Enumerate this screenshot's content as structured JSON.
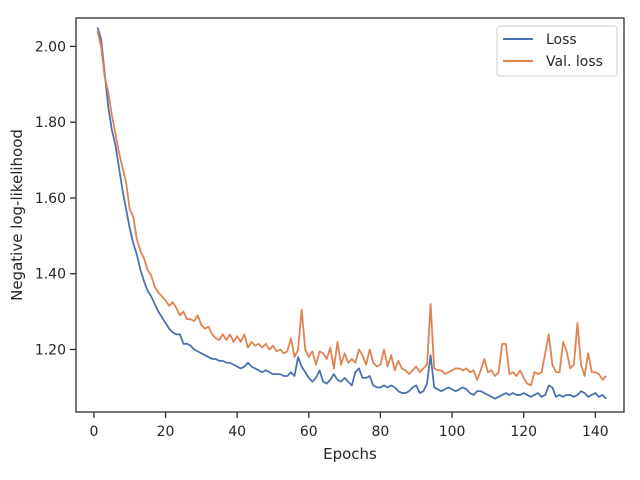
{
  "chart_data": {
    "type": "line",
    "title": "",
    "xlabel": "Epochs",
    "ylabel": "Negative log-likelihood",
    "xlim": [
      -5,
      148
    ],
    "ylim": [
      1.035,
      2.075
    ],
    "xticks": [
      0,
      20,
      40,
      60,
      80,
      100,
      120,
      140
    ],
    "xtick_labels": [
      "0",
      "20",
      "40",
      "60",
      "80",
      "100",
      "120",
      "140"
    ],
    "yticks": [
      1.2,
      1.4,
      1.6,
      1.8,
      2.0
    ],
    "ytick_labels": [
      "1.20",
      "1.40",
      "1.60",
      "1.80",
      "2.00"
    ],
    "grid": false,
    "legend_position": "top-right",
    "series": [
      {
        "name": "Loss",
        "color": "#4c72b0",
        "x": [
          1,
          2,
          3,
          4,
          5,
          6,
          7,
          8,
          9,
          10,
          11,
          12,
          13,
          14,
          15,
          16,
          17,
          18,
          19,
          20,
          21,
          22,
          23,
          24,
          25,
          26,
          27,
          28,
          29,
          30,
          31,
          32,
          33,
          34,
          35,
          36,
          37,
          38,
          39,
          40,
          41,
          42,
          43,
          44,
          45,
          46,
          47,
          48,
          49,
          50,
          51,
          52,
          53,
          54,
          55,
          56,
          57,
          58,
          59,
          60,
          61,
          62,
          63,
          64,
          65,
          66,
          67,
          68,
          69,
          70,
          71,
          72,
          73,
          74,
          75,
          76,
          77,
          78,
          79,
          80,
          81,
          82,
          83,
          84,
          85,
          86,
          87,
          88,
          89,
          90,
          91,
          92,
          93,
          94,
          95,
          96,
          97,
          98,
          99,
          100,
          101,
          102,
          103,
          104,
          105,
          106,
          107,
          108,
          109,
          110,
          111,
          112,
          113,
          114,
          115,
          116,
          117,
          118,
          119,
          120,
          121,
          122,
          123,
          124,
          125,
          126,
          127,
          128,
          129,
          130,
          131,
          132,
          133,
          134,
          135,
          136,
          137,
          138,
          139,
          140,
          141,
          142,
          143
        ],
        "values": [
          2.05,
          2.02,
          1.93,
          1.84,
          1.78,
          1.74,
          1.68,
          1.62,
          1.57,
          1.52,
          1.48,
          1.45,
          1.41,
          1.38,
          1.355,
          1.34,
          1.32,
          1.3,
          1.285,
          1.27,
          1.255,
          1.245,
          1.24,
          1.24,
          1.215,
          1.215,
          1.21,
          1.2,
          1.195,
          1.19,
          1.185,
          1.18,
          1.175,
          1.175,
          1.17,
          1.17,
          1.165,
          1.165,
          1.16,
          1.155,
          1.15,
          1.155,
          1.165,
          1.155,
          1.15,
          1.145,
          1.14,
          1.145,
          1.14,
          1.135,
          1.135,
          1.135,
          1.13,
          1.13,
          1.14,
          1.13,
          1.18,
          1.155,
          1.14,
          1.125,
          1.115,
          1.125,
          1.145,
          1.115,
          1.11,
          1.12,
          1.135,
          1.12,
          1.115,
          1.125,
          1.115,
          1.105,
          1.14,
          1.15,
          1.125,
          1.125,
          1.13,
          1.105,
          1.1,
          1.1,
          1.105,
          1.1,
          1.105,
          1.1,
          1.09,
          1.085,
          1.085,
          1.09,
          1.1,
          1.105,
          1.085,
          1.09,
          1.11,
          1.185,
          1.1,
          1.095,
          1.09,
          1.095,
          1.1,
          1.095,
          1.09,
          1.095,
          1.1,
          1.095,
          1.085,
          1.08,
          1.09,
          1.09,
          1.085,
          1.08,
          1.075,
          1.07,
          1.075,
          1.08,
          1.085,
          1.08,
          1.085,
          1.08,
          1.08,
          1.085,
          1.08,
          1.075,
          1.08,
          1.085,
          1.075,
          1.08,
          1.105,
          1.1,
          1.075,
          1.08,
          1.075,
          1.08,
          1.08,
          1.075,
          1.08,
          1.09,
          1.085,
          1.075,
          1.08,
          1.085,
          1.075,
          1.08,
          1.07
        ]
      },
      {
        "name": "Val. loss",
        "color": "#dd8452",
        "x": [
          1,
          2,
          3,
          4,
          5,
          6,
          7,
          8,
          9,
          10,
          11,
          12,
          13,
          14,
          15,
          16,
          17,
          18,
          19,
          20,
          21,
          22,
          23,
          24,
          25,
          26,
          27,
          28,
          29,
          30,
          31,
          32,
          33,
          34,
          35,
          36,
          37,
          38,
          39,
          40,
          41,
          42,
          43,
          44,
          45,
          46,
          47,
          48,
          49,
          50,
          51,
          52,
          53,
          54,
          55,
          56,
          57,
          58,
          59,
          60,
          61,
          62,
          63,
          64,
          65,
          66,
          67,
          68,
          69,
          70,
          71,
          72,
          73,
          74,
          75,
          76,
          77,
          78,
          79,
          80,
          81,
          82,
          83,
          84,
          85,
          86,
          87,
          88,
          89,
          90,
          91,
          92,
          93,
          94,
          95,
          96,
          97,
          98,
          99,
          100,
          101,
          102,
          103,
          104,
          105,
          106,
          107,
          108,
          109,
          110,
          111,
          112,
          113,
          114,
          115,
          116,
          117,
          118,
          119,
          120,
          121,
          122,
          123,
          124,
          125,
          126,
          127,
          128,
          129,
          130,
          131,
          132,
          133,
          134,
          135,
          136,
          137,
          138,
          139,
          140,
          141,
          142,
          143
        ],
        "values": [
          2.04,
          2.0,
          1.92,
          1.88,
          1.82,
          1.77,
          1.72,
          1.68,
          1.64,
          1.57,
          1.55,
          1.49,
          1.46,
          1.44,
          1.41,
          1.395,
          1.365,
          1.35,
          1.34,
          1.33,
          1.315,
          1.325,
          1.31,
          1.29,
          1.3,
          1.28,
          1.28,
          1.275,
          1.29,
          1.265,
          1.255,
          1.26,
          1.24,
          1.23,
          1.225,
          1.24,
          1.225,
          1.24,
          1.22,
          1.235,
          1.22,
          1.24,
          1.205,
          1.22,
          1.21,
          1.215,
          1.205,
          1.215,
          1.2,
          1.21,
          1.195,
          1.2,
          1.19,
          1.195,
          1.23,
          1.18,
          1.2,
          1.305,
          1.2,
          1.18,
          1.195,
          1.16,
          1.195,
          1.19,
          1.175,
          1.205,
          1.15,
          1.22,
          1.16,
          1.19,
          1.165,
          1.175,
          1.165,
          1.2,
          1.185,
          1.16,
          1.2,
          1.165,
          1.155,
          1.16,
          1.2,
          1.155,
          1.185,
          1.145,
          1.17,
          1.15,
          1.145,
          1.135,
          1.145,
          1.155,
          1.14,
          1.15,
          1.16,
          1.32,
          1.15,
          1.145,
          1.145,
          1.135,
          1.14,
          1.145,
          1.15,
          1.15,
          1.145,
          1.15,
          1.14,
          1.145,
          1.12,
          1.145,
          1.175,
          1.14,
          1.145,
          1.13,
          1.14,
          1.215,
          1.215,
          1.135,
          1.14,
          1.13,
          1.145,
          1.125,
          1.11,
          1.105,
          1.14,
          1.135,
          1.14,
          1.19,
          1.24,
          1.16,
          1.14,
          1.14,
          1.22,
          1.195,
          1.15,
          1.16,
          1.27,
          1.16,
          1.13,
          1.19,
          1.14,
          1.14,
          1.135,
          1.12,
          1.13
        ]
      }
    ]
  }
}
